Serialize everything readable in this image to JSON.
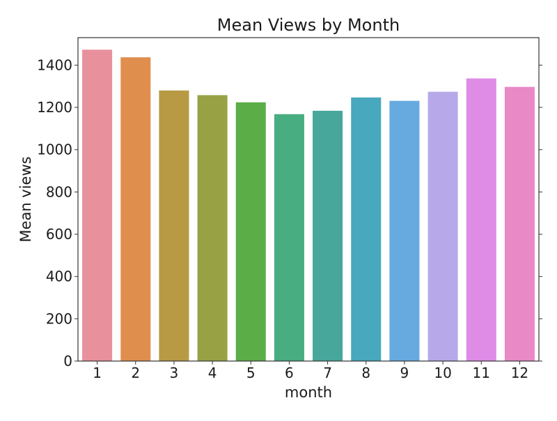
{
  "chart_data": {
    "type": "bar",
    "title": "Mean Views by Month",
    "xlabel": "month",
    "ylabel": "Mean views",
    "categories": [
      "1",
      "2",
      "3",
      "4",
      "5",
      "6",
      "7",
      "8",
      "9",
      "10",
      "11",
      "12"
    ],
    "values": [
      1473,
      1437,
      1280,
      1258,
      1224,
      1168,
      1184,
      1247,
      1231,
      1274,
      1337,
      1297
    ],
    "colors": [
      "#e8919c",
      "#e08e4e",
      "#b89a45",
      "#98a244",
      "#5aad47",
      "#48ad80",
      "#47a79b",
      "#48a8bd",
      "#67aae0",
      "#b7a8ea",
      "#de8ce6",
      "#e989c6"
    ],
    "ylim": [
      0,
      1530
    ],
    "yticks": [
      0,
      200,
      400,
      600,
      800,
      1000,
      1200,
      1400
    ],
    "grid": false,
    "legend": "none"
  }
}
